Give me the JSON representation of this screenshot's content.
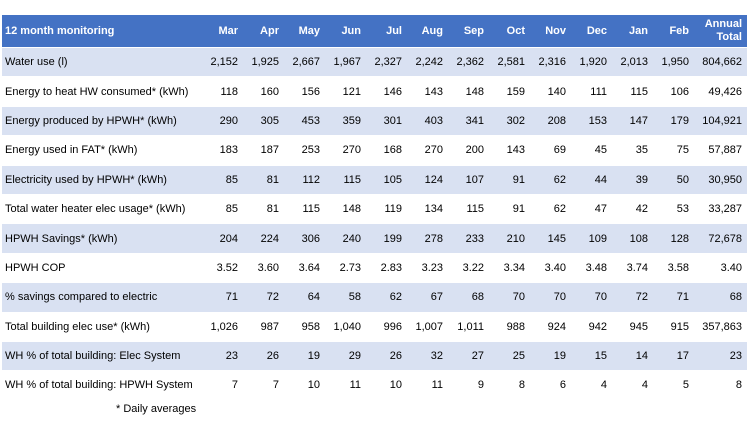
{
  "header": {
    "title": "12 month monitoring",
    "columns": [
      "Mar",
      "Apr",
      "May",
      "Jun",
      "Jul",
      "Aug",
      "Sep",
      "Oct",
      "Nov",
      "Dec",
      "Jan",
      "Feb",
      "Annual Total"
    ]
  },
  "rows": [
    {
      "label": "Water use (l)",
      "values": [
        "2,152",
        "1,925",
        "2,667",
        "1,967",
        "2,327",
        "2,242",
        "2,362",
        "2,581",
        "2,316",
        "1,920",
        "2,013",
        "1,950",
        "804,662"
      ]
    },
    {
      "label": "Energy to heat HW consumed* (kWh)",
      "values": [
        "118",
        "160",
        "156",
        "121",
        "146",
        "143",
        "148",
        "159",
        "140",
        "111",
        "115",
        "106",
        "49,426"
      ]
    },
    {
      "label": "Energy produced by HPWH* (kWh)",
      "values": [
        "290",
        "305",
        "453",
        "359",
        "301",
        "403",
        "341",
        "302",
        "208",
        "153",
        "147",
        "179",
        "104,921"
      ]
    },
    {
      "label": "Energy used in FAT* (kWh)",
      "values": [
        "183",
        "187",
        "253",
        "270",
        "168",
        "270",
        "200",
        "143",
        "69",
        "45",
        "35",
        "75",
        "57,887"
      ]
    },
    {
      "label": "Electricity used by HPWH* (kWh)",
      "values": [
        "85",
        "81",
        "112",
        "115",
        "105",
        "124",
        "107",
        "91",
        "62",
        "44",
        "39",
        "50",
        "30,950"
      ]
    },
    {
      "label": "Total water heater elec usage* (kWh)",
      "values": [
        "85",
        "81",
        "115",
        "148",
        "119",
        "134",
        "115",
        "91",
        "62",
        "47",
        "42",
        "53",
        "33,287"
      ]
    },
    {
      "label": "HPWH Savings* (kWh)",
      "values": [
        "204",
        "224",
        "306",
        "240",
        "199",
        "278",
        "233",
        "210",
        "145",
        "109",
        "108",
        "128",
        "72,678"
      ]
    },
    {
      "label": "HPWH COP",
      "values": [
        "3.52",
        "3.60",
        "3.64",
        "2.73",
        "2.83",
        "3.23",
        "3.22",
        "3.34",
        "3.40",
        "3.48",
        "3.74",
        "3.58",
        "3.40"
      ]
    },
    {
      "label": "% savings compared to electric",
      "values": [
        "71",
        "72",
        "64",
        "58",
        "62",
        "67",
        "68",
        "70",
        "70",
        "70",
        "72",
        "71",
        "68"
      ]
    },
    {
      "label": "Total building elec use* (kWh)",
      "values": [
        "1,026",
        "987",
        "958",
        "1,040",
        "996",
        "1,007",
        "1,011",
        "988",
        "924",
        "942",
        "945",
        "915",
        "357,863"
      ]
    },
    {
      "label": "WH % of total building: Elec System",
      "values": [
        "23",
        "26",
        "19",
        "29",
        "26",
        "32",
        "27",
        "25",
        "19",
        "15",
        "14",
        "17",
        "23"
      ]
    },
    {
      "label": "WH % of total building: HPWH System",
      "values": [
        "7",
        "7",
        "10",
        "11",
        "10",
        "11",
        "9",
        "8",
        "6",
        "4",
        "4",
        "5",
        "8"
      ]
    }
  ],
  "footnote": "* Daily averages"
}
